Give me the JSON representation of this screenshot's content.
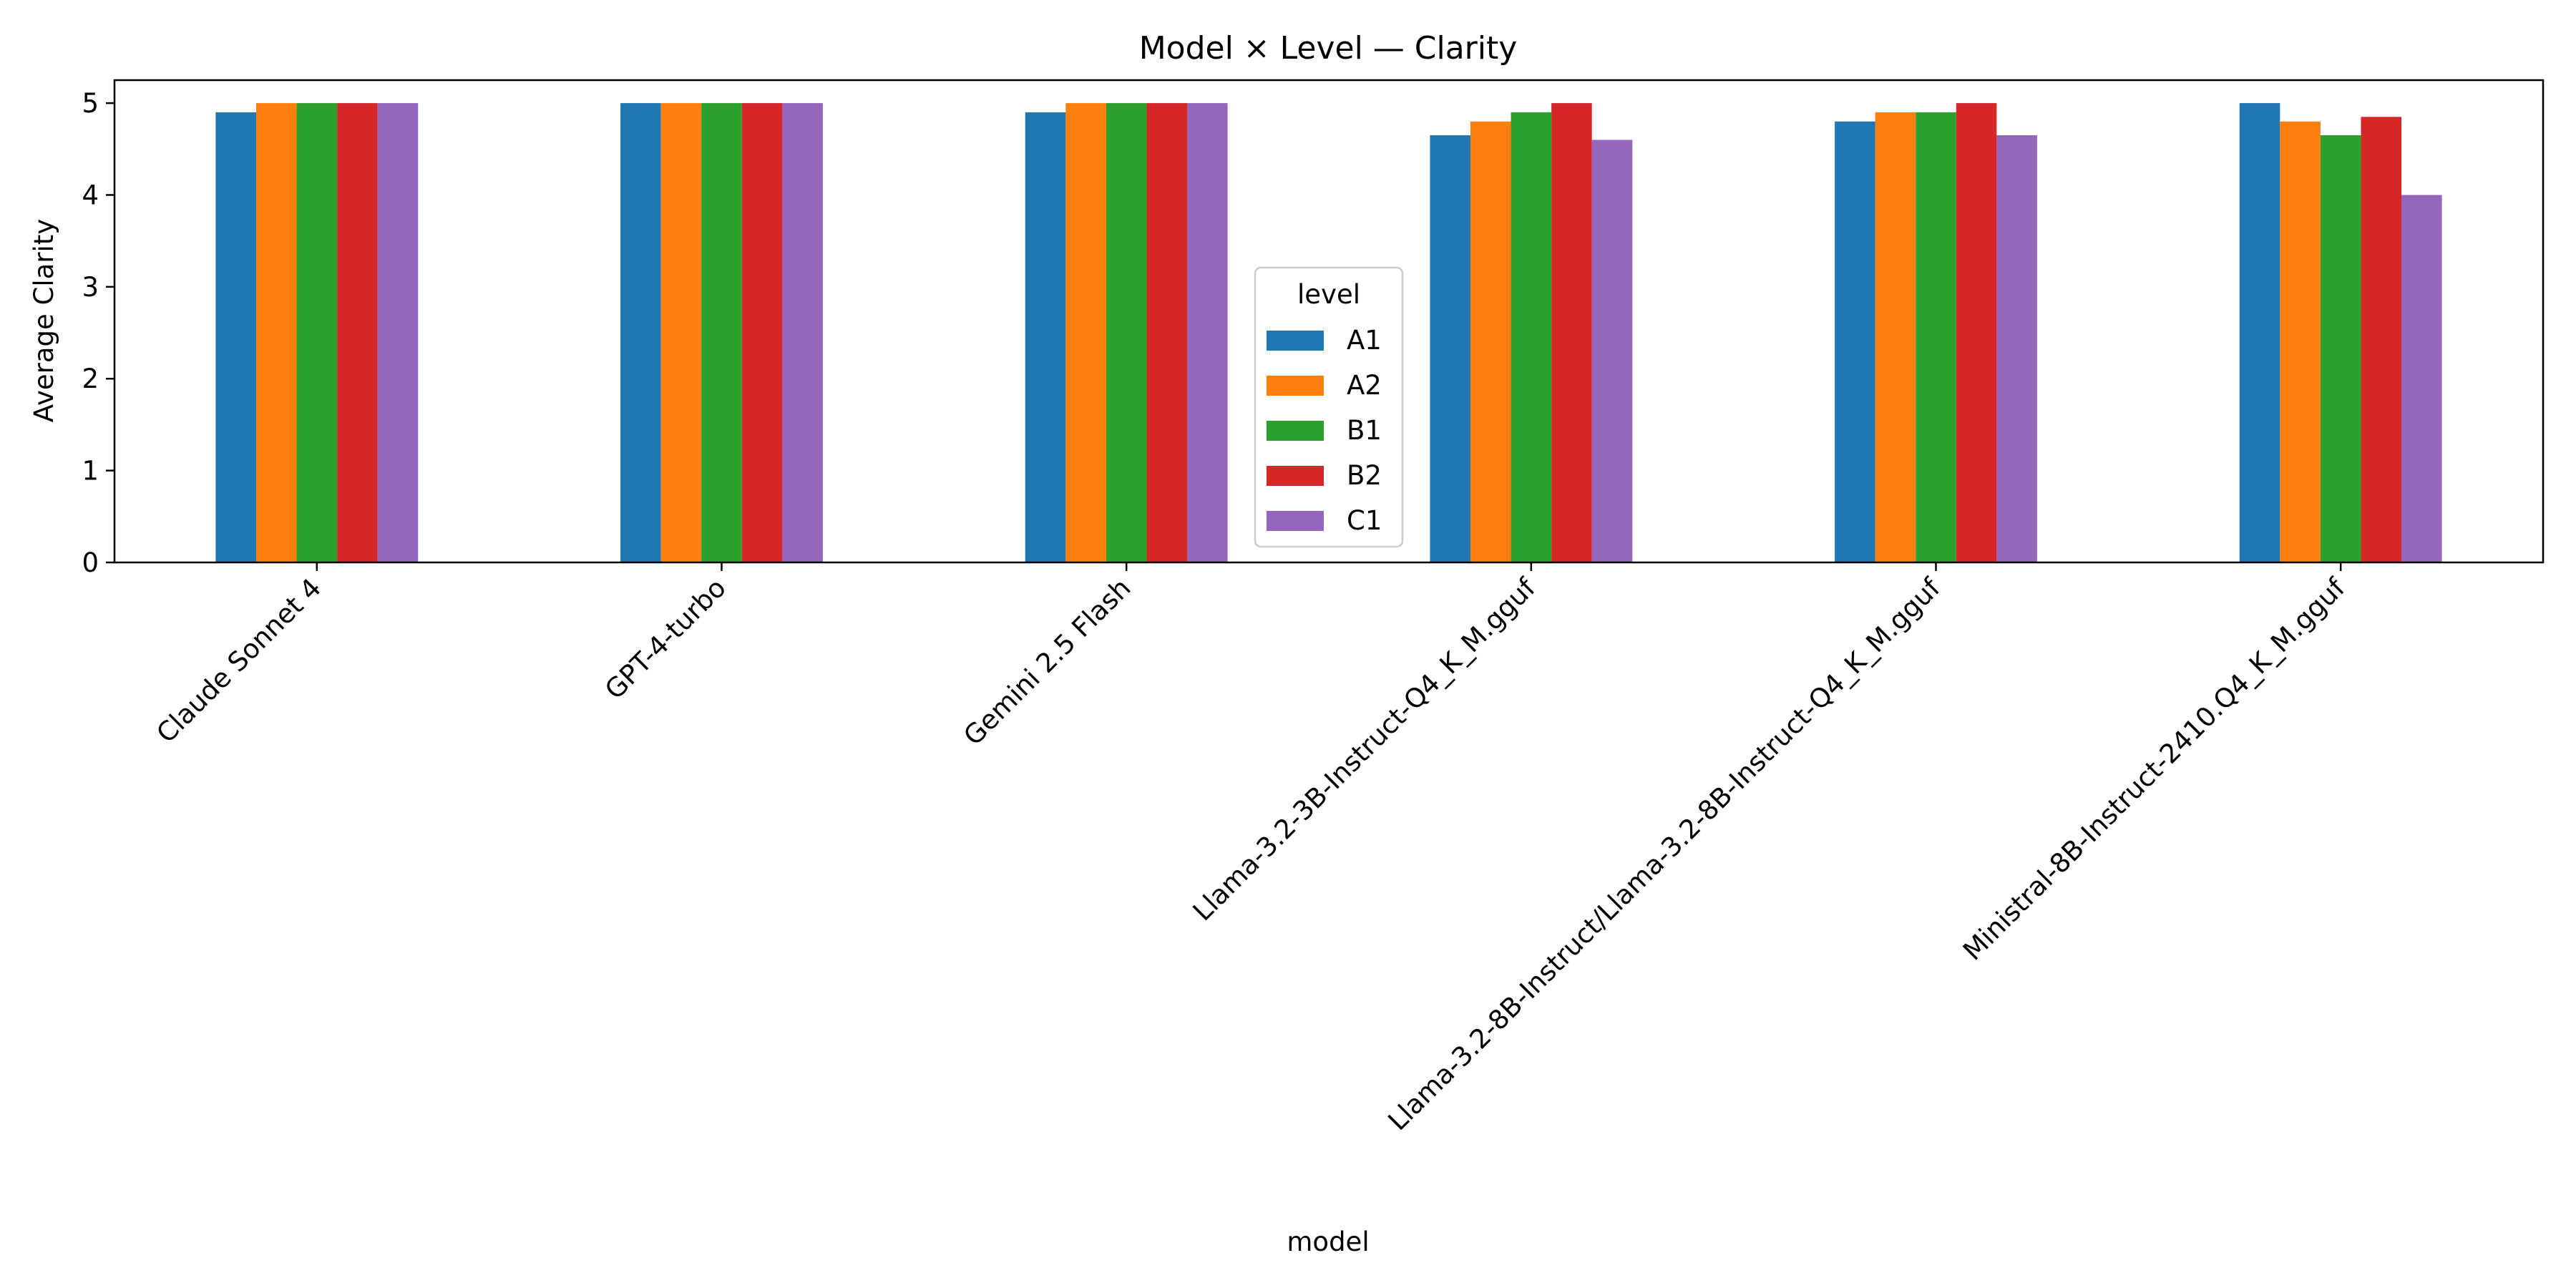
{
  "chart_data": {
    "type": "bar",
    "title": "Model × Level — Clarity",
    "xlabel": "model",
    "ylabel": "Average Clarity",
    "ylim": [
      0,
      5.25
    ],
    "yticks": [
      0,
      1,
      2,
      3,
      4,
      5
    ],
    "grid": false,
    "legend": {
      "title": "level",
      "placement": "center"
    },
    "categories": [
      "Claude Sonnet 4",
      "GPT-4-turbo",
      "Gemini 2.5 Flash",
      "Llama-3.2-3B-Instruct-Q4_K_M.gguf",
      "Llama-3.2-8B-Instruct/Llama-3.2-8B-Instruct-Q4_K_M.gguf",
      "Ministral-8B-Instruct-2410.Q4_K_M.gguf"
    ],
    "series": [
      {
        "name": "A1",
        "color": "#1f77b4",
        "values": [
          4.9,
          5.0,
          4.9,
          4.65,
          4.8,
          5.0
        ]
      },
      {
        "name": "A2",
        "color": "#ff7f0e",
        "values": [
          5.0,
          5.0,
          5.0,
          4.8,
          4.9,
          4.8
        ]
      },
      {
        "name": "B1",
        "color": "#2ca02c",
        "values": [
          5.0,
          5.0,
          5.0,
          4.9,
          4.9,
          4.65
        ]
      },
      {
        "name": "B2",
        "color": "#d62728",
        "values": [
          5.0,
          5.0,
          5.0,
          5.0,
          5.0,
          4.85
        ]
      },
      {
        "name": "C1",
        "color": "#9467bd",
        "values": [
          5.0,
          5.0,
          5.0,
          4.6,
          4.65,
          4.0
        ]
      }
    ]
  }
}
